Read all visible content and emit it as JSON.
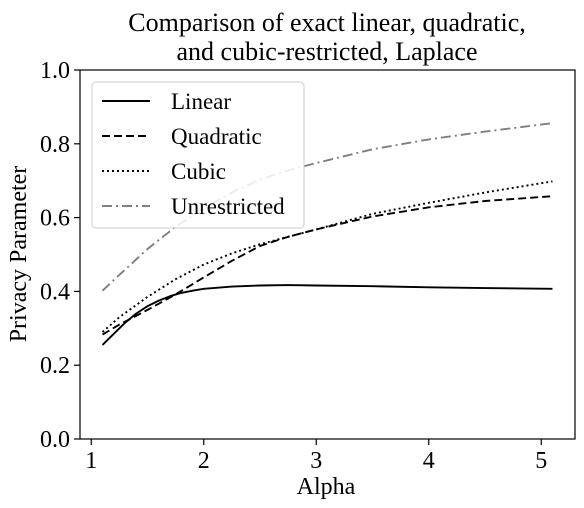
{
  "chart_data": {
    "type": "line",
    "title_lines": [
      "Comparison of exact linear, quadratic,",
      "and cubic-restricted, Laplace"
    ],
    "xlabel": "Alpha",
    "ylabel": "Privacy Parameter",
    "xlim": [
      0.9,
      5.3
    ],
    "ylim": [
      0.0,
      1.0
    ],
    "xticks": [
      1,
      2,
      3,
      4,
      5
    ],
    "xtick_labels": [
      "1",
      "2",
      "3",
      "4",
      "5"
    ],
    "yticks": [
      0.0,
      0.2,
      0.4,
      0.6,
      0.8,
      1.0
    ],
    "ytick_labels": [
      "0.0",
      "0.2",
      "0.4",
      "0.6",
      "0.8",
      "1.0"
    ],
    "grid": false,
    "legend_position": "top-left",
    "series": [
      {
        "name": "Linear",
        "color": "#000000",
        "style": "solid",
        "x": [
          1.1,
          1.2,
          1.3,
          1.4,
          1.5,
          1.6,
          1.7,
          1.8,
          1.9,
          2.0,
          2.25,
          2.5,
          2.75,
          3.0,
          3.5,
          4.0,
          4.5,
          5.1
        ],
        "y": [
          0.255,
          0.285,
          0.315,
          0.34,
          0.36,
          0.375,
          0.387,
          0.396,
          0.402,
          0.407,
          0.413,
          0.416,
          0.417,
          0.416,
          0.414,
          0.411,
          0.409,
          0.407
        ]
      },
      {
        "name": "Quadratic",
        "color": "#000000",
        "style": "dashed",
        "x": [
          1.1,
          1.25,
          1.5,
          1.75,
          2.0,
          2.25,
          2.5,
          2.75,
          3.0,
          3.5,
          4.0,
          4.5,
          5.1
        ],
        "y": [
          0.283,
          0.31,
          0.35,
          0.392,
          0.438,
          0.483,
          0.523,
          0.548,
          0.568,
          0.603,
          0.628,
          0.645,
          0.658
        ]
      },
      {
        "name": "Cubic",
        "color": "#000000",
        "style": "dotted",
        "x": [
          1.1,
          1.25,
          1.5,
          1.75,
          2.0,
          2.25,
          2.5,
          2.75,
          3.0,
          3.5,
          4.0,
          4.5,
          5.1
        ],
        "y": [
          0.29,
          0.33,
          0.385,
          0.433,
          0.473,
          0.503,
          0.528,
          0.548,
          0.568,
          0.61,
          0.64,
          0.668,
          0.698
        ]
      },
      {
        "name": "Unrestricted",
        "color": "#7f7f7f",
        "style": "dashdot",
        "x": [
          1.1,
          1.25,
          1.5,
          1.75,
          2.0,
          2.25,
          2.5,
          2.75,
          3.0,
          3.5,
          4.0,
          4.5,
          5.1
        ],
        "y": [
          0.402,
          0.445,
          0.515,
          0.575,
          0.625,
          0.668,
          0.703,
          0.728,
          0.748,
          0.785,
          0.812,
          0.833,
          0.856
        ]
      }
    ]
  }
}
